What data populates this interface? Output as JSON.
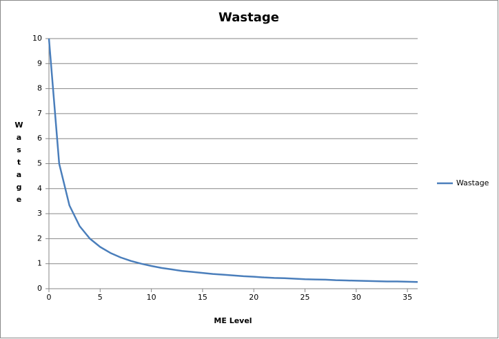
{
  "chart_data": {
    "type": "line",
    "title": "Wastage",
    "x_label": "ME Level",
    "y_label": "Wastage",
    "x": [
      0,
      1,
      2,
      3,
      4,
      5,
      6,
      7,
      8,
      9,
      10,
      11,
      12,
      13,
      14,
      15,
      16,
      17,
      18,
      19,
      20,
      21,
      22,
      23,
      24,
      25,
      26,
      27,
      28,
      29,
      30,
      31,
      32,
      33,
      34,
      35,
      36
    ],
    "series": [
      {
        "name": "Wastage",
        "color": "#4a7ebb",
        "values": [
          10,
          5,
          3.33,
          2.5,
          2,
          1.67,
          1.43,
          1.25,
          1.11,
          1,
          0.91,
          0.83,
          0.77,
          0.71,
          0.67,
          0.63,
          0.59,
          0.56,
          0.53,
          0.5,
          0.48,
          0.45,
          0.43,
          0.42,
          0.4,
          0.38,
          0.37,
          0.36,
          0.34,
          0.33,
          0.32,
          0.31,
          0.3,
          0.29,
          0.29,
          0.28,
          0.27
        ]
      }
    ],
    "xlim": [
      0,
      36
    ],
    "xticks": [
      0,
      5,
      10,
      15,
      20,
      25,
      30,
      35
    ],
    "ylim": [
      0,
      10
    ],
    "yticks": [
      0,
      1,
      2,
      3,
      4,
      5,
      6,
      7,
      8,
      9,
      10
    ],
    "grid": true,
    "legend": "right"
  }
}
